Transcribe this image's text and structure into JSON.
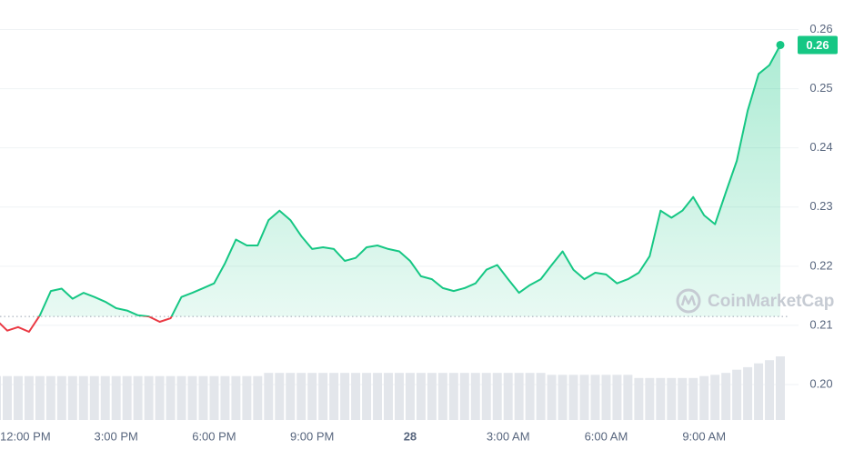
{
  "chart_data": {
    "type": "line",
    "watermark": "CoinMarketCap",
    "last_value_label": "0.26",
    "baseline": 0.2115,
    "up_color": "#16c784",
    "down_color": "#ea3943",
    "ylim": [
      0.194,
      0.265
    ],
    "yticks": [
      0.26,
      0.25,
      0.24,
      0.23,
      0.22,
      0.21,
      {
        "value": 0.2,
        "label": "0.20"
      }
    ],
    "grid": true,
    "categories": [
      null,
      null,
      "12:00 PM",
      null,
      null,
      null,
      null,
      null,
      null,
      null,
      null,
      "3:00 PM",
      null,
      null,
      null,
      null,
      null,
      null,
      null,
      null,
      "6:00 PM",
      null,
      null,
      null,
      null,
      null,
      null,
      null,
      null,
      "9:00 PM",
      null,
      null,
      null,
      null,
      null,
      null,
      null,
      null,
      "28",
      null,
      null,
      null,
      null,
      null,
      null,
      null,
      null,
      "3:00 AM",
      null,
      null,
      null,
      null,
      null,
      null,
      null,
      null,
      "6:00 AM",
      null,
      null,
      null,
      null,
      null,
      null,
      null,
      null,
      "9:00 AM",
      null,
      null,
      null,
      null,
      null,
      null,
      null
    ],
    "values": [
      0.2109,
      0.2091,
      0.2097,
      0.2089,
      0.2117,
      0.2158,
      0.2162,
      0.2145,
      0.2155,
      0.2148,
      0.214,
      0.2129,
      0.2125,
      0.2117,
      0.2115,
      0.2106,
      0.2112,
      0.2148,
      0.2155,
      0.2163,
      0.2171,
      0.2205,
      0.2245,
      0.2235,
      0.2235,
      0.2278,
      0.2294,
      0.2278,
      0.2251,
      0.2229,
      0.2232,
      0.2229,
      0.2209,
      0.2214,
      0.2232,
      0.2235,
      0.2229,
      0.2225,
      0.2209,
      0.2183,
      0.2178,
      0.2163,
      0.2158,
      0.2163,
      0.2171,
      0.2194,
      0.2202,
      0.2178,
      0.2155,
      0.2168,
      0.2178,
      0.2202,
      0.2225,
      0.2194,
      0.2178,
      0.2189,
      0.2186,
      0.2171,
      0.2178,
      0.2189,
      0.2217,
      0.2294,
      0.2282,
      0.2294,
      0.2317,
      0.2286,
      0.2271,
      0.2325,
      0.2378,
      0.2463,
      0.2525,
      0.254,
      0.2574
    ],
    "volume_color": "#e3e6eb",
    "volume_lim": [
      0,
      100
    ],
    "volume": [
      69,
      69,
      69,
      69,
      69,
      69,
      69,
      69,
      69,
      69,
      69,
      69,
      69,
      69,
      69,
      69,
      69,
      69,
      69,
      69,
      69,
      69,
      69,
      69,
      69,
      74,
      74,
      74,
      74,
      74,
      74,
      74,
      74,
      74,
      74,
      74,
      74,
      74,
      74,
      74,
      74,
      74,
      74,
      74,
      74,
      74,
      74,
      74,
      74,
      74,
      74,
      71,
      71,
      71,
      71,
      71,
      71,
      71,
      71,
      66,
      66,
      66,
      66,
      66,
      66,
      69,
      71,
      74,
      79,
      83,
      89,
      94,
      100
    ]
  }
}
